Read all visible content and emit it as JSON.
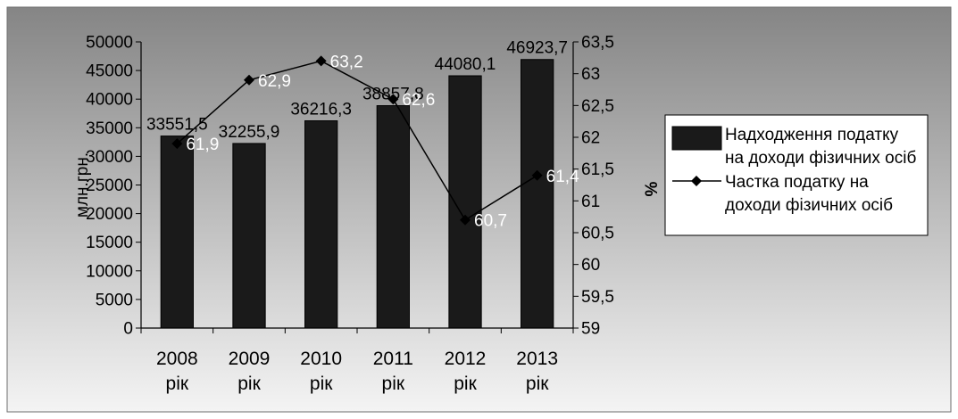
{
  "chart_data": {
    "type": "bar",
    "categories": [
      [
        "2008",
        "рік"
      ],
      [
        "2009",
        "рік"
      ],
      [
        "2010",
        "рік"
      ],
      [
        "2011",
        "рік"
      ],
      [
        "2012",
        "рік"
      ],
      [
        "2013",
        "рік"
      ]
    ],
    "series": [
      {
        "name": "Надходження податку на доходи фізичних осіб",
        "type": "bar",
        "axis": "left",
        "values": [
          33551.5,
          32255.9,
          36216.3,
          38857.8,
          44080.1,
          46923.7
        ],
        "labels": [
          "33551,5",
          "32255,9",
          "36216,3",
          "38857,8",
          "44080,1",
          "46923,7"
        ],
        "legend_lines": [
          "Надходження податку",
          "на доходи фізичних осіб"
        ]
      },
      {
        "name": "Частка податку на доходи фізичних осіб",
        "type": "line",
        "axis": "right",
        "values": [
          61.9,
          62.9,
          63.2,
          62.6,
          60.7,
          61.4
        ],
        "labels": [
          "61,9",
          "62,9",
          "63,2",
          "62,6",
          "60,7",
          "61,4"
        ],
        "legend_lines": [
          "Частка податку на",
          "доходи фізичних осіб"
        ]
      }
    ],
    "ylabel_left": "млн.грн.",
    "ylabel_right": "%",
    "ylim_left": [
      0,
      50000
    ],
    "ylim_right": [
      59,
      63.5
    ],
    "yticks_left": [
      "0",
      "5000",
      "10000",
      "15000",
      "20000",
      "25000",
      "30000",
      "35000",
      "40000",
      "45000",
      "50000"
    ],
    "yticks_right": [
      "59",
      "59,5",
      "60",
      "60,5",
      "61",
      "61,5",
      "62",
      "62,5",
      "63",
      "63,5"
    ],
    "grid": false,
    "legend_position": "right",
    "colors": {
      "bar_fill": "#1a1a1a",
      "line": "#000000",
      "point_label": "#ffffff",
      "bg_top": "#858585",
      "bg_bottom": "#f4f4f4",
      "frame": "#6e6e6e",
      "legend_bg": "#ffffff"
    }
  }
}
